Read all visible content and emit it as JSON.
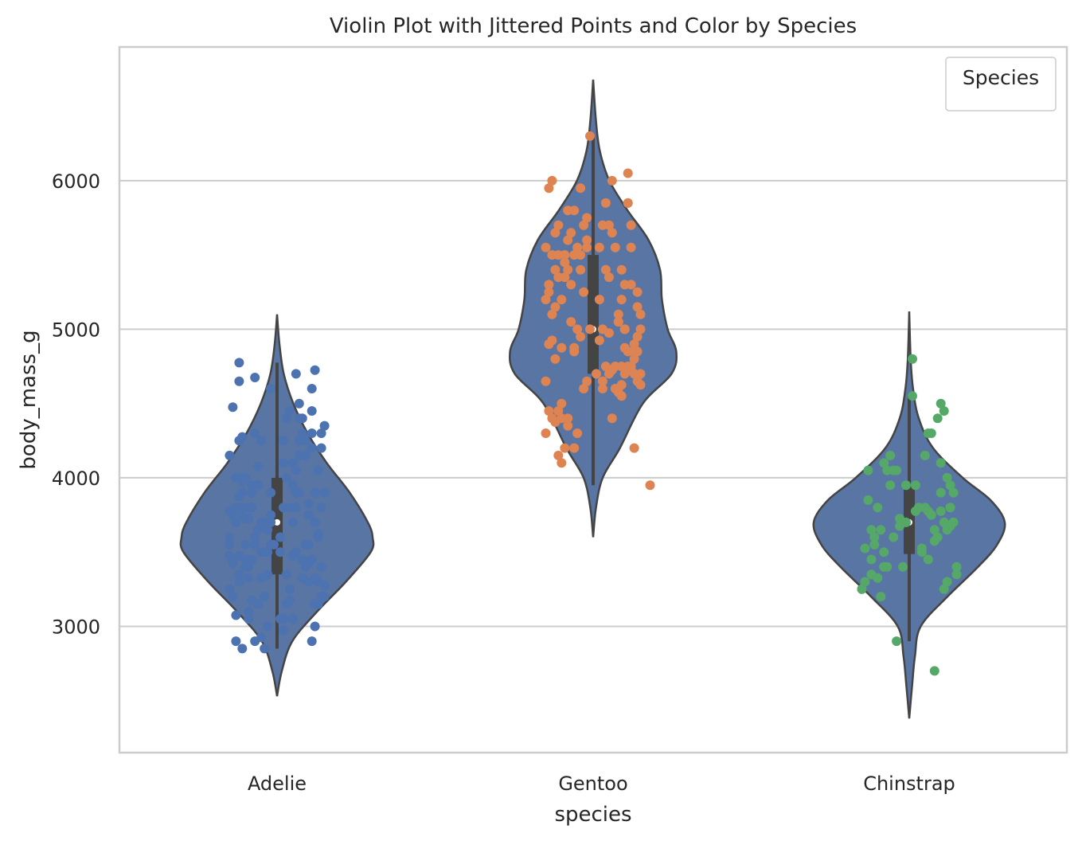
{
  "chart_data": {
    "type": "violin",
    "title": "Violin Plot with Jittered Points and Color by Species",
    "xlabel": "species",
    "ylabel": "body_mass_g",
    "categories": [
      "Adelie",
      "Gentoo",
      "Chinstrap"
    ],
    "ylim": [
      2150,
      6900
    ],
    "yticks": [
      3000,
      4000,
      5000,
      6000
    ],
    "ytick_labels": [
      "3000",
      "4000",
      "5000",
      "6000"
    ],
    "grid": "horizontal",
    "legend": {
      "title": "Species",
      "position": "top-right",
      "entries": []
    },
    "colors": {
      "violin_fill": "#5975a4",
      "violin_edge": "#444444",
      "box": "#444444",
      "grid": "#cccccc",
      "spine": "#cccccc",
      "points": [
        "#4c72b0",
        "#dd8452",
        "#55a868"
      ]
    },
    "violins": [
      {
        "name": "Adelie",
        "density": [
          [
            2530,
            0.0
          ],
          [
            2700,
            0.05
          ],
          [
            2900,
            0.16
          ],
          [
            3100,
            0.42
          ],
          [
            3300,
            0.72
          ],
          [
            3500,
            0.98
          ],
          [
            3600,
            1.0
          ],
          [
            3700,
            0.95
          ],
          [
            3900,
            0.76
          ],
          [
            4100,
            0.52
          ],
          [
            4300,
            0.32
          ],
          [
            4500,
            0.17
          ],
          [
            4700,
            0.07
          ],
          [
            4900,
            0.025
          ],
          [
            5100,
            0.0
          ]
        ],
        "min": 2850,
        "q1": 3350,
        "median": 3700,
        "q3": 4000,
        "max": 4775
      },
      {
        "name": "Gentoo",
        "density": [
          [
            3600,
            0.0
          ],
          [
            3800,
            0.03
          ],
          [
            4000,
            0.1
          ],
          [
            4200,
            0.28
          ],
          [
            4500,
            0.52
          ],
          [
            4700,
            0.82
          ],
          [
            4850,
            0.87
          ],
          [
            5000,
            0.78
          ],
          [
            5200,
            0.72
          ],
          [
            5400,
            0.7
          ],
          [
            5600,
            0.58
          ],
          [
            5800,
            0.36
          ],
          [
            6000,
            0.17
          ],
          [
            6200,
            0.07
          ],
          [
            6400,
            0.03
          ],
          [
            6680,
            0.0
          ]
        ],
        "min": 3950,
        "q1": 4700,
        "median": 5000,
        "q3": 5500,
        "max": 6300
      },
      {
        "name": "Chinstrap",
        "density": [
          [
            2380,
            0.0
          ],
          [
            2600,
            0.03
          ],
          [
            2800,
            0.06
          ],
          [
            3000,
            0.12
          ],
          [
            3200,
            0.4
          ],
          [
            3400,
            0.72
          ],
          [
            3550,
            0.92
          ],
          [
            3700,
            1.0
          ],
          [
            3850,
            0.85
          ],
          [
            4000,
            0.56
          ],
          [
            4200,
            0.25
          ],
          [
            4400,
            0.1
          ],
          [
            4600,
            0.04
          ],
          [
            4800,
            0.015
          ],
          [
            5120,
            0.0
          ]
        ],
        "min": 2900,
        "q1": 3487,
        "median": 3700,
        "q3": 3950,
        "max": 4550
      }
    ],
    "points": [
      {
        "species": "Adelie",
        "values": [
          3750,
          3800,
          3250,
          3450,
          3650,
          3625,
          4675,
          3475,
          4250,
          3300,
          3700,
          3200,
          3800,
          4400,
          3700,
          3450,
          4500,
          3325,
          4200,
          3400,
          3600,
          3800,
          3950,
          3800,
          3800,
          3550,
          3200,
          3150,
          3950,
          3250,
          3900,
          3300,
          3900,
          3325,
          4150,
          3950,
          3550,
          3300,
          4650,
          3150,
          3900,
          3100,
          4400,
          3000,
          4600,
          3425,
          2975,
          3450,
          4150,
          3500,
          4300,
          3450,
          4050,
          2900,
          3700,
          3550,
          3800,
          2850,
          3750,
          3150,
          4400,
          3600,
          4050,
          2850,
          3950,
          3350,
          4100,
          3050,
          4450,
          3600,
          3900,
          3550,
          4150,
          3700,
          4250,
          3700,
          3900,
          3550,
          4000,
          3200,
          4700,
          3800,
          4200,
          3350,
          3550,
          3800,
          3500,
          3950,
          3600,
          3550,
          4300,
          3400,
          4450,
          3300,
          4300,
          3700,
          4350,
          2900,
          4100,
          3725,
          4725,
          3075,
          4250,
          2925,
          3550,
          3750,
          3900,
          3175,
          4775,
          3825,
          4600,
          3200,
          4275,
          3900,
          4075,
          2900,
          3775,
          3350,
          3325,
          3150,
          3500,
          3450,
          3875,
          3050,
          4000,
          3275,
          4300,
          3050,
          4000,
          3325,
          3500,
          3500,
          4475,
          3425,
          3900,
          3175,
          3975,
          3400,
          4250,
          3400,
          3475,
          3050,
          3725,
          3000,
          3650,
          4250,
          3475,
          3450,
          3750,
          3700,
          4000
        ],
        "offsets": [
          -0.11,
          0.02,
          -0.15,
          0.08,
          -0.03,
          0.13,
          -0.07,
          0.05,
          -0.12,
          0.1,
          -0.02,
          0.15,
          -0.09,
          0.03,
          0.12,
          -0.14,
          0.07,
          -0.05,
          0.11,
          -0.1,
          0.01,
          0.14,
          -0.08,
          0.06,
          -0.13,
          0.09,
          -0.04,
          0.12,
          -0.06,
          0.04,
          -0.11,
          0.13,
          -0.02,
          0.08,
          -0.15,
          0.05,
          -0.07,
          0.1,
          -0.12,
          0.03,
          0.15,
          -0.09,
          0.07,
          -0.03,
          0.11,
          -0.14,
          0.02,
          -0.1,
          0.09,
          -0.05,
          0.14,
          -0.08,
          0.06,
          -0.13,
          0.12,
          -0.01,
          0.04,
          -0.11,
          0.1,
          -0.06,
          0.08,
          -0.15,
          0.13,
          -0.04,
          0.05,
          -0.12,
          0.02,
          -0.09,
          0.11,
          -0.07,
          0.15,
          -0.02,
          0.07,
          -0.13,
          0.09,
          -0.05,
          0.12,
          -0.1,
          0.03,
          -0.14,
          0.06,
          -0.08,
          0.14,
          -0.03,
          0.1,
          -0.11,
          0.01,
          -0.06,
          0.13,
          -0.15,
          0.08,
          -0.09,
          0.04,
          -0.12,
          0.11,
          -0.04,
          0.15,
          -0.07,
          0.05,
          -0.1,
          0.12,
          -0.13,
          0.02,
          -0.05,
          0.09,
          -0.14,
          0.07,
          -0.08,
          -0.12,
          0.1,
          -0.02,
          0.14,
          -0.11,
          0.06,
          -0.06,
          0.11,
          -0.15,
          0.03,
          -0.09,
          0.13,
          -0.04,
          0.08,
          -0.12,
          0.05,
          -0.1,
          0.15,
          -0.07,
          0.01,
          -0.13,
          0.12,
          -0.03,
          0.06,
          -0.14,
          0.1,
          -0.08,
          0.04,
          -0.11,
          0.14,
          -0.05,
          0.09,
          -0.15,
          0.02,
          -0.09,
          0.12,
          -0.06,
          0.07,
          -0.12,
          0.11,
          -0.02,
          0.05
        ],
        "color": "#4c72b0"
      },
      {
        "species": "Gentoo",
        "values": [
          4500,
          5700,
          4450,
          5700,
          5400,
          4550,
          4800,
          5200,
          4400,
          5150,
          4650,
          5550,
          4650,
          5850,
          4200,
          5850,
          4150,
          6300,
          4800,
          5350,
          5700,
          5000,
          4400,
          5050,
          5000,
          5100,
          4100,
          5650,
          4600,
          5550,
          5250,
          4700,
          5050,
          6050,
          5150,
          5400,
          4950,
          5250,
          4350,
          5350,
          3950,
          5700,
          4300,
          4750,
          5550,
          4900,
          4200,
          5400,
          5100,
          5300,
          4850,
          5300,
          4400,
          5000,
          4900,
          5050,
          4300,
          5000,
          4450,
          5550,
          4200,
          5300,
          4400,
          5650,
          4700,
          5700,
          4650,
          5800,
          4700,
          5550,
          4750,
          5000,
          5100,
          5200,
          4700,
          5800,
          4600,
          6000,
          4750,
          5950,
          4625,
          5450,
          4725,
          5350,
          4750,
          5600,
          4600,
          5300,
          4875,
          5550,
          4950,
          5400,
          4750,
          5650,
          4850,
          5200,
          4925,
          4875,
          4625,
          5250,
          4850,
          5600,
          4975,
          5500,
          4725,
          5500,
          4700,
          5500,
          4575,
          5500,
          5000,
          5950,
          4650,
          5500,
          4375,
          5850,
          4875,
          6000,
          4925,
          4850,
          5750,
          5200,
          5400
        ],
        "offsets": [
          -0.1,
          0.05,
          -0.14,
          0.12,
          -0.04,
          0.09,
          -0.12,
          0.02,
          -0.08,
          0.14,
          -0.02,
          0.07,
          -0.15,
          0.11,
          -0.06,
          0.04,
          -0.11,
          -0.01,
          0.13,
          -0.09,
          0.03,
          0.1,
          -0.13,
          0.08,
          -0.05,
          0.15,
          -0.1,
          0.06,
          -0.03,
          0.12,
          -0.14,
          0.01,
          -0.07,
          0.11,
          -0.12,
          0.09,
          -0.04,
          0.14,
          -0.08,
          0.05,
          0.18,
          -0.11,
          -0.15,
          0.07,
          -0.02,
          0.13,
          -0.09,
          0.04,
          -0.13,
          0.1,
          -0.06,
          0.12,
          -0.1,
          0.03,
          -0.14,
          0.08,
          -0.05,
          0.15,
          -0.11,
          0.02,
          0.13,
          -0.07,
          0.06,
          -0.12,
          0.1,
          -0.03,
          0.14,
          -0.08,
          0.05,
          -0.15,
          0.11,
          -0.01,
          0.08,
          -0.1,
          0.13,
          -0.06,
          0.03,
          -0.13,
          0.09,
          -0.04,
          0.15,
          -0.09,
          0.06,
          -0.11,
          0.12,
          -0.02,
          0.07,
          -0.14,
          0.1,
          -0.05,
          0.14,
          -0.12,
          0.04,
          -0.07,
          0.11,
          -0.15,
          0.02,
          -0.1,
          0.09,
          -0.03,
          0.13,
          -0.08,
          0.05,
          -0.13,
          0.12,
          -0.06,
          0.15,
          -0.11,
          0.08,
          -0.04,
          0.1,
          -0.14,
          0.03,
          -0.09,
          -0.12,
          0.11,
          -0.06,
          0.06,
          -0.13,
          0.14,
          -0.02,
          0.09,
          -0.08
        ],
        "color": "#dd8452"
      },
      {
        "species": "Chinstrap",
        "values": [
          3500,
          3900,
          3650,
          3525,
          3725,
          3950,
          3250,
          3750,
          4150,
          3700,
          3800,
          3775,
          3700,
          4050,
          3575,
          4050,
          3300,
          3700,
          3450,
          4400,
          3600,
          3400,
          2900,
          3800,
          3300,
          4150,
          3400,
          3800,
          3700,
          4550,
          3200,
          4300,
          3350,
          4100,
          3600,
          3900,
          3850,
          4800,
          2700,
          4500,
          3950,
          3650,
          3550,
          3500,
          3675,
          4450,
          3400,
          4300,
          3250,
          3675,
          3325,
          3950,
          3600,
          4050,
          3350,
          3450,
          3250,
          4050,
          3800,
          3525,
          3950,
          3650,
          3650,
          4000,
          3400,
          3775,
          4100,
          3775
        ],
        "offsets": [
          -0.08,
          0.1,
          -0.12,
          0.04,
          -0.03,
          0.13,
          -0.15,
          0.07,
          -0.06,
          0.11,
          -0.1,
          0.02,
          0.14,
          -0.05,
          0.08,
          -0.13,
          0.12,
          -0.01,
          0.06,
          0.09,
          -0.11,
          0.15,
          -0.04,
          0.03,
          -0.14,
          0.05,
          -0.07,
          0.13,
          -0.02,
          0.01,
          -0.09,
          0.06,
          -0.12,
          0.1,
          -0.05,
          0.14,
          -0.13,
          0.01,
          0.08,
          0.1,
          -0.06,
          0.12,
          -0.11,
          0.04,
          -0.03,
          0.11,
          -0.08,
          0.07,
          -0.15,
          0.13,
          -0.1,
          0.02,
          0.09,
          -0.04,
          0.15,
          -0.12,
          0.11,
          -0.07,
          0.05,
          -0.14,
          -0.01,
          0.08,
          -0.09,
          0.12,
          -0.02,
          0.06,
          -0.08,
          0.1
        ],
        "color": "#55a868"
      }
    ]
  }
}
